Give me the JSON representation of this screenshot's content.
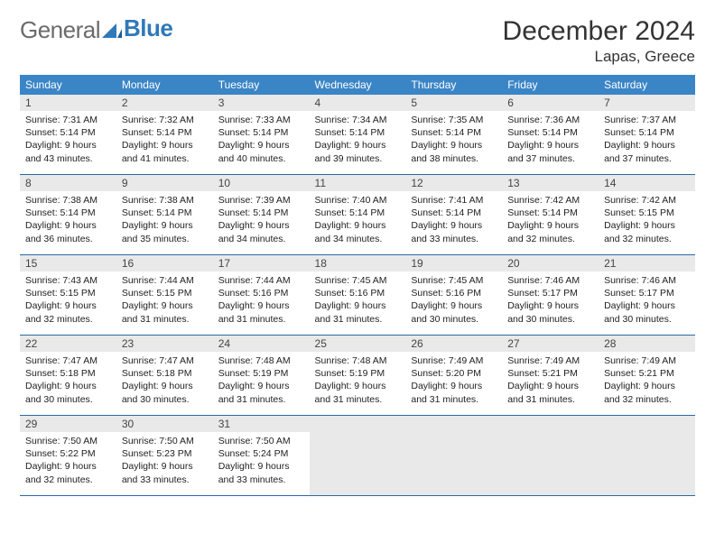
{
  "logo": {
    "general": "General",
    "blue": "Blue"
  },
  "title": "December 2024",
  "location": "Lapas, Greece",
  "colors": {
    "header_bg": "#3a85c6",
    "header_fg": "#ffffff",
    "daynum_bg": "#e9e9e9",
    "rule": "#2a6aa3",
    "logo_gray": "#6b6b6b",
    "logo_blue": "#2f79b9"
  },
  "weekday_labels": [
    "Sunday",
    "Monday",
    "Tuesday",
    "Wednesday",
    "Thursday",
    "Friday",
    "Saturday"
  ],
  "weeks": [
    [
      {
        "n": "1",
        "sunrise": "Sunrise: 7:31 AM",
        "sunset": "Sunset: 5:14 PM",
        "daylight1": "Daylight: 9 hours",
        "daylight2": "and 43 minutes."
      },
      {
        "n": "2",
        "sunrise": "Sunrise: 7:32 AM",
        "sunset": "Sunset: 5:14 PM",
        "daylight1": "Daylight: 9 hours",
        "daylight2": "and 41 minutes."
      },
      {
        "n": "3",
        "sunrise": "Sunrise: 7:33 AM",
        "sunset": "Sunset: 5:14 PM",
        "daylight1": "Daylight: 9 hours",
        "daylight2": "and 40 minutes."
      },
      {
        "n": "4",
        "sunrise": "Sunrise: 7:34 AM",
        "sunset": "Sunset: 5:14 PM",
        "daylight1": "Daylight: 9 hours",
        "daylight2": "and 39 minutes."
      },
      {
        "n": "5",
        "sunrise": "Sunrise: 7:35 AM",
        "sunset": "Sunset: 5:14 PM",
        "daylight1": "Daylight: 9 hours",
        "daylight2": "and 38 minutes."
      },
      {
        "n": "6",
        "sunrise": "Sunrise: 7:36 AM",
        "sunset": "Sunset: 5:14 PM",
        "daylight1": "Daylight: 9 hours",
        "daylight2": "and 37 minutes."
      },
      {
        "n": "7",
        "sunrise": "Sunrise: 7:37 AM",
        "sunset": "Sunset: 5:14 PM",
        "daylight1": "Daylight: 9 hours",
        "daylight2": "and 37 minutes."
      }
    ],
    [
      {
        "n": "8",
        "sunrise": "Sunrise: 7:38 AM",
        "sunset": "Sunset: 5:14 PM",
        "daylight1": "Daylight: 9 hours",
        "daylight2": "and 36 minutes."
      },
      {
        "n": "9",
        "sunrise": "Sunrise: 7:38 AM",
        "sunset": "Sunset: 5:14 PM",
        "daylight1": "Daylight: 9 hours",
        "daylight2": "and 35 minutes."
      },
      {
        "n": "10",
        "sunrise": "Sunrise: 7:39 AM",
        "sunset": "Sunset: 5:14 PM",
        "daylight1": "Daylight: 9 hours",
        "daylight2": "and 34 minutes."
      },
      {
        "n": "11",
        "sunrise": "Sunrise: 7:40 AM",
        "sunset": "Sunset: 5:14 PM",
        "daylight1": "Daylight: 9 hours",
        "daylight2": "and 34 minutes."
      },
      {
        "n": "12",
        "sunrise": "Sunrise: 7:41 AM",
        "sunset": "Sunset: 5:14 PM",
        "daylight1": "Daylight: 9 hours",
        "daylight2": "and 33 minutes."
      },
      {
        "n": "13",
        "sunrise": "Sunrise: 7:42 AM",
        "sunset": "Sunset: 5:14 PM",
        "daylight1": "Daylight: 9 hours",
        "daylight2": "and 32 minutes."
      },
      {
        "n": "14",
        "sunrise": "Sunrise: 7:42 AM",
        "sunset": "Sunset: 5:15 PM",
        "daylight1": "Daylight: 9 hours",
        "daylight2": "and 32 minutes."
      }
    ],
    [
      {
        "n": "15",
        "sunrise": "Sunrise: 7:43 AM",
        "sunset": "Sunset: 5:15 PM",
        "daylight1": "Daylight: 9 hours",
        "daylight2": "and 32 minutes."
      },
      {
        "n": "16",
        "sunrise": "Sunrise: 7:44 AM",
        "sunset": "Sunset: 5:15 PM",
        "daylight1": "Daylight: 9 hours",
        "daylight2": "and 31 minutes."
      },
      {
        "n": "17",
        "sunrise": "Sunrise: 7:44 AM",
        "sunset": "Sunset: 5:16 PM",
        "daylight1": "Daylight: 9 hours",
        "daylight2": "and 31 minutes."
      },
      {
        "n": "18",
        "sunrise": "Sunrise: 7:45 AM",
        "sunset": "Sunset: 5:16 PM",
        "daylight1": "Daylight: 9 hours",
        "daylight2": "and 31 minutes."
      },
      {
        "n": "19",
        "sunrise": "Sunrise: 7:45 AM",
        "sunset": "Sunset: 5:16 PM",
        "daylight1": "Daylight: 9 hours",
        "daylight2": "and 30 minutes."
      },
      {
        "n": "20",
        "sunrise": "Sunrise: 7:46 AM",
        "sunset": "Sunset: 5:17 PM",
        "daylight1": "Daylight: 9 hours",
        "daylight2": "and 30 minutes."
      },
      {
        "n": "21",
        "sunrise": "Sunrise: 7:46 AM",
        "sunset": "Sunset: 5:17 PM",
        "daylight1": "Daylight: 9 hours",
        "daylight2": "and 30 minutes."
      }
    ],
    [
      {
        "n": "22",
        "sunrise": "Sunrise: 7:47 AM",
        "sunset": "Sunset: 5:18 PM",
        "daylight1": "Daylight: 9 hours",
        "daylight2": "and 30 minutes."
      },
      {
        "n": "23",
        "sunrise": "Sunrise: 7:47 AM",
        "sunset": "Sunset: 5:18 PM",
        "daylight1": "Daylight: 9 hours",
        "daylight2": "and 30 minutes."
      },
      {
        "n": "24",
        "sunrise": "Sunrise: 7:48 AM",
        "sunset": "Sunset: 5:19 PM",
        "daylight1": "Daylight: 9 hours",
        "daylight2": "and 31 minutes."
      },
      {
        "n": "25",
        "sunrise": "Sunrise: 7:48 AM",
        "sunset": "Sunset: 5:19 PM",
        "daylight1": "Daylight: 9 hours",
        "daylight2": "and 31 minutes."
      },
      {
        "n": "26",
        "sunrise": "Sunrise: 7:49 AM",
        "sunset": "Sunset: 5:20 PM",
        "daylight1": "Daylight: 9 hours",
        "daylight2": "and 31 minutes."
      },
      {
        "n": "27",
        "sunrise": "Sunrise: 7:49 AM",
        "sunset": "Sunset: 5:21 PM",
        "daylight1": "Daylight: 9 hours",
        "daylight2": "and 31 minutes."
      },
      {
        "n": "28",
        "sunrise": "Sunrise: 7:49 AM",
        "sunset": "Sunset: 5:21 PM",
        "daylight1": "Daylight: 9 hours",
        "daylight2": "and 32 minutes."
      }
    ],
    [
      {
        "n": "29",
        "sunrise": "Sunrise: 7:50 AM",
        "sunset": "Sunset: 5:22 PM",
        "daylight1": "Daylight: 9 hours",
        "daylight2": "and 32 minutes."
      },
      {
        "n": "30",
        "sunrise": "Sunrise: 7:50 AM",
        "sunset": "Sunset: 5:23 PM",
        "daylight1": "Daylight: 9 hours",
        "daylight2": "and 33 minutes."
      },
      {
        "n": "31",
        "sunrise": "Sunrise: 7:50 AM",
        "sunset": "Sunset: 5:24 PM",
        "daylight1": "Daylight: 9 hours",
        "daylight2": "and 33 minutes."
      },
      null,
      null,
      null,
      null
    ]
  ]
}
